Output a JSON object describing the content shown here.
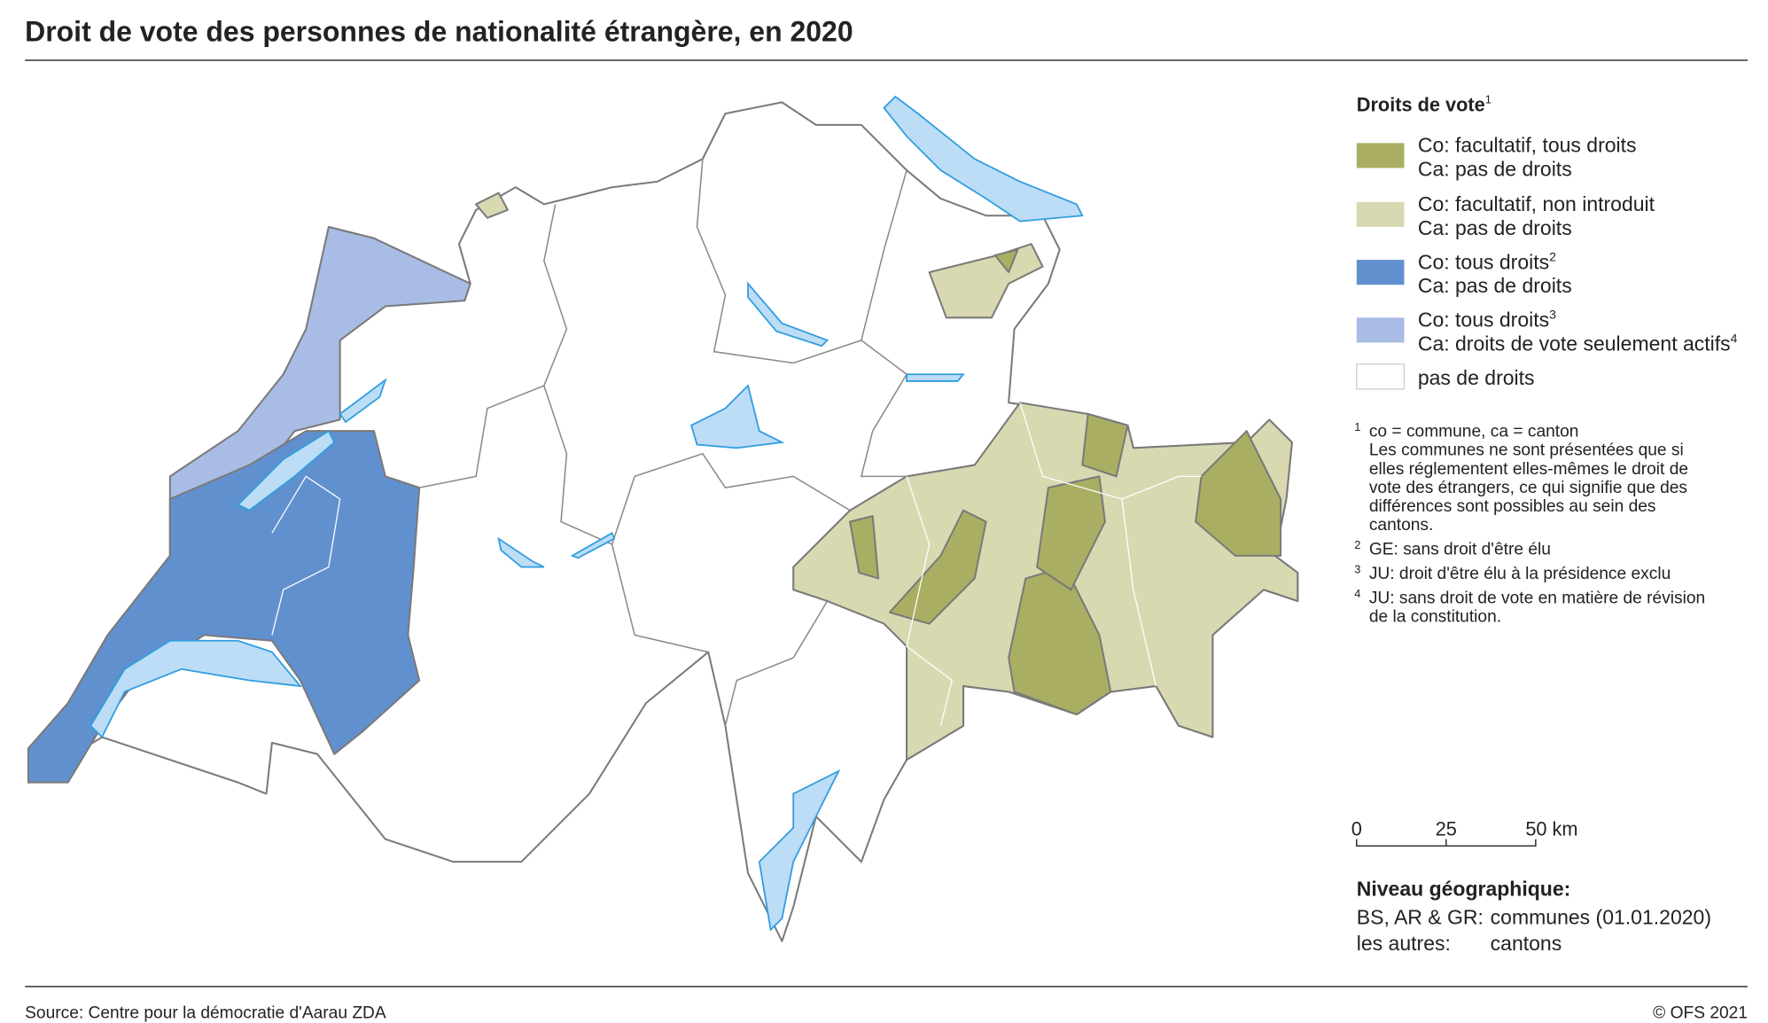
{
  "header": {
    "title": "Droit de vote des personnes de nationalité étrangère, en 2020"
  },
  "legend": {
    "title": "Droits de vote",
    "title_note": "1",
    "items": [
      {
        "line1": "Co: facultatif, tous droits",
        "line2": "Ca: pas de droits",
        "color": "#aaae62"
      },
      {
        "line1": "Co: facultatif, non introduit",
        "line2": "Ca: pas de droits",
        "color": "#d9d9b1"
      },
      {
        "line1": "Co: tous droits",
        "line1_note": "2",
        "line2": "Ca: pas de droits",
        "color": "#6190cf"
      },
      {
        "line1": "Co: tous droits",
        "line1_note": "3",
        "line2": "Ca: droits de vote seulement actifs",
        "line2_note": "4",
        "color": "#a9bce6"
      },
      {
        "line1": "pas de droits",
        "color": "#ffffff"
      }
    ]
  },
  "footnotes": [
    {
      "marker": "1",
      "lines": [
        "co = commune, ca = canton",
        "Les communes ne sont présentées que si",
        "elles réglementent elles-mêmes le droit de",
        "vote des étrangers, ce qui signifie que des",
        "différences sont possibles au sein des",
        "cantons."
      ]
    },
    {
      "marker": "2",
      "lines": [
        "GE: sans droit d'être élu"
      ]
    },
    {
      "marker": "3",
      "lines": [
        "JU: droit d'être élu à la présidence exclu"
      ]
    },
    {
      "marker": "4",
      "lines": [
        "JU: sans droit de vote en matière de révision",
        "de la constitution."
      ]
    }
  ],
  "scale": {
    "labels": [
      "0",
      "25",
      "50 km"
    ]
  },
  "level": {
    "title": "Niveau géographique:",
    "rows": [
      [
        "BS, AR & GR:",
        "communes (01.01.2020)"
      ],
      [
        "les autres:",
        "cantons"
      ]
    ]
  },
  "footer": {
    "source": "Source: Centre pour la démocratie d'Aarau ZDA",
    "copyright": "© OFS 2021"
  }
}
